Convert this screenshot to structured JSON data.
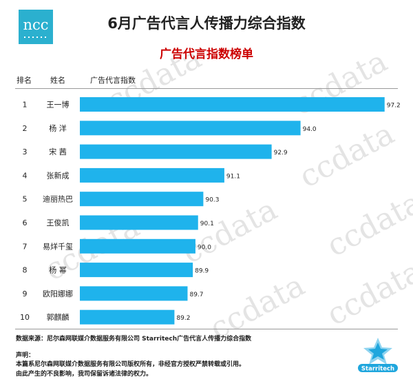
{
  "logo_text": "ncc",
  "title": "6月广告代言人传播力综合指数",
  "subtitle": "广告代言指数榜单",
  "headers": {
    "rank": "排名",
    "name": "姓名",
    "value": "广告代言指数"
  },
  "watermark": "ccdata",
  "colors": {
    "bar": "#1fb3ec",
    "logo_bg": "#2bb0cf",
    "subtitle": "#cc0000"
  },
  "chart_data": {
    "type": "bar",
    "orientation": "horizontal",
    "ranks": [
      "1",
      "2",
      "3",
      "4",
      "5",
      "6",
      "7",
      "8",
      "9",
      "10"
    ],
    "categories": [
      "王一博",
      "杨  洋",
      "宋  茜",
      "张新成",
      "迪丽热巴",
      "王俊凯",
      "易烊千玺",
      "杨  幂",
      "欧阳娜娜",
      "郭麒麟"
    ],
    "values": [
      97.2,
      94.0,
      92.9,
      91.1,
      90.3,
      90.1,
      90.0,
      89.9,
      89.7,
      89.2
    ],
    "value_labels": [
      "97.2",
      "94.0",
      "92.9",
      "91.1",
      "90.3",
      "90.1",
      "90.0",
      "89.9",
      "89.7",
      "89.2"
    ],
    "xlim": [
      85.6,
      97.6
    ]
  },
  "source": "数据来源：尼尔森网联媒介数据服务有限公司 Starritech广告代言人传播力综合指数",
  "statement_title": "声明：",
  "statement_lines": [
    "本篇系尼尔森网联媒介数据服务有限公司版权所有，非经官方授权严禁转载或引用。",
    "由此产生的不良影响，我司保留诉诸法律的权力。"
  ],
  "brand": "Starritech"
}
